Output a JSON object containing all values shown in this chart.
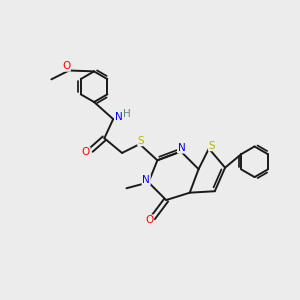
{
  "background_color": "#ececec",
  "bond_color": "#1a1a1a",
  "atom_colors": {
    "N": "#0000ff",
    "S": "#b8b800",
    "O": "#ff0000",
    "H": "#5a8a8a"
  },
  "figsize": [
    3.0,
    3.0
  ],
  "dpi": 100,
  "bond_lw": 1.4,
  "fontsize": 7.5
}
